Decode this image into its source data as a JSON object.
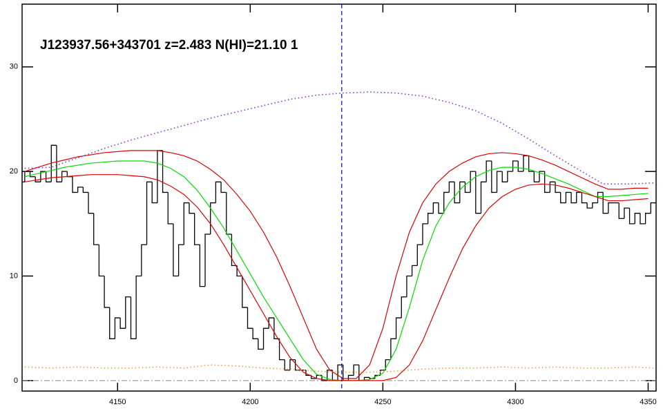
{
  "chart_data": {
    "type": "line",
    "title": "J123937.56+343701 z=2.483 N(HI)=21.10 1",
    "xlim": [
      4114,
      4353
    ],
    "ylim": [
      -1,
      36
    ],
    "xticks": [
      4150,
      4200,
      4250,
      4300,
      4350
    ],
    "yticks": [
      0,
      10,
      20,
      30
    ],
    "grid": false,
    "series": [
      {
        "style": "step",
        "color": "#000000",
        "x": [
          4114,
          4116,
          4118,
          4120,
          4122,
          4124,
          4126,
          4128,
          4130,
          4132,
          4134,
          4136,
          4138,
          4140,
          4142,
          4144,
          4146,
          4148,
          4150,
          4152,
          4154,
          4156,
          4158,
          4160,
          4162,
          4164,
          4166,
          4168,
          4170,
          4172,
          4174,
          4176,
          4178,
          4180,
          4182,
          4184,
          4186,
          4188,
          4190,
          4192,
          4194,
          4196,
          4198,
          4200,
          4202,
          4204,
          4206,
          4208,
          4210,
          4212,
          4214,
          4216,
          4218,
          4220,
          4222,
          4224,
          4226,
          4228,
          4230,
          4232,
          4234,
          4236,
          4238,
          4240,
          4242,
          4244,
          4246,
          4248,
          4250,
          4252,
          4254,
          4256,
          4258,
          4260,
          4262,
          4264,
          4266,
          4268,
          4270,
          4272,
          4274,
          4276,
          4278,
          4280,
          4282,
          4284,
          4286,
          4288,
          4290,
          4292,
          4294,
          4296,
          4298,
          4300,
          4302,
          4304,
          4306,
          4308,
          4310,
          4312,
          4314,
          4316,
          4318,
          4320,
          4322,
          4324,
          4326,
          4328,
          4330,
          4332,
          4334,
          4336,
          4338,
          4340,
          4342,
          4344,
          4346,
          4348,
          4350,
          4352
        ],
        "values": [
          19,
          20,
          19.5,
          19,
          20,
          19,
          22.5,
          19,
          20,
          19.5,
          18,
          18.5,
          18,
          16,
          13,
          10,
          7,
          4,
          6,
          5,
          8,
          4,
          10,
          13,
          19,
          17,
          22,
          18,
          15,
          10,
          13,
          17,
          16,
          13,
          9,
          14,
          17,
          19,
          18,
          14,
          11,
          10,
          7,
          5,
          4,
          3,
          5,
          6,
          4,
          2,
          1,
          2,
          1,
          1,
          0.5,
          0.2,
          0.5,
          0,
          1,
          0,
          1.5,
          0,
          0.5,
          1.5,
          0,
          0.3,
          0.2,
          0.5,
          1,
          2,
          4,
          6,
          8,
          10,
          11,
          13,
          15,
          16,
          17,
          16,
          18,
          19,
          17,
          19,
          18,
          20,
          16,
          19,
          21,
          18,
          20,
          19,
          20,
          21,
          20,
          21.5,
          20,
          19,
          20,
          18,
          19,
          18,
          17,
          18,
          17,
          18,
          17,
          16.5,
          17,
          18,
          16,
          17,
          17,
          15.5,
          16.5,
          15,
          16,
          15,
          16,
          17
        ]
      },
      {
        "style": "line",
        "color": "#00dd00",
        "x": [
          4115,
          4120,
          4125,
          4130,
          4135,
          4140,
          4145,
          4150,
          4155,
          4160,
          4165,
          4170,
          4175,
          4180,
          4185,
          4190,
          4195,
          4200,
          4205,
          4210,
          4215,
          4220,
          4225,
          4230,
          4235,
          4240,
          4245,
          4250,
          4255,
          4260,
          4265,
          4270,
          4275,
          4280,
          4285,
          4290,
          4295,
          4300,
          4305,
          4310,
          4315,
          4320,
          4325,
          4330,
          4335,
          4340,
          4345,
          4350
        ],
        "values": [
          19.5,
          19.8,
          20.1,
          20.4,
          20.6,
          20.8,
          20.9,
          21.0,
          21.0,
          21.0,
          20.8,
          20.3,
          19.5,
          18.2,
          16.5,
          14.6,
          12.4,
          10.2,
          8.0,
          6.0,
          4.0,
          2.0,
          0.6,
          0.1,
          0,
          0,
          0.1,
          0.7,
          3.0,
          7.0,
          11.5,
          14.8,
          17.0,
          18.5,
          19.5,
          20.1,
          20.4,
          20.4,
          20.2,
          19.8,
          19.3,
          18.8,
          18.2,
          17.6,
          17.6,
          17.7,
          17.8,
          17.9
        ]
      },
      {
        "style": "line",
        "color": "#dd0000",
        "x": [
          4115,
          4120,
          4125,
          4130,
          4135,
          4140,
          4145,
          4150,
          4155,
          4160,
          4165,
          4170,
          4175,
          4180,
          4185,
          4190,
          4195,
          4200,
          4205,
          4210,
          4215,
          4220,
          4225,
          4230,
          4235,
          4240,
          4245,
          4250,
          4255,
          4260,
          4265,
          4270,
          4275,
          4280,
          4285,
          4290,
          4295,
          4300,
          4305,
          4310,
          4315,
          4320,
          4325,
          4330,
          4335,
          4340,
          4345,
          4350
        ],
        "values": [
          20.0,
          20.4,
          20.8,
          21.1,
          21.4,
          21.6,
          21.8,
          21.9,
          22.0,
          22.0,
          22.0,
          21.8,
          21.5,
          21.0,
          20.2,
          19.2,
          17.8,
          16.2,
          14.2,
          11.8,
          9.0,
          6.0,
          3.0,
          1.0,
          0.2,
          0.2,
          1.5,
          5.0,
          10.0,
          14.2,
          17.0,
          18.8,
          20.0,
          20.8,
          21.4,
          21.7,
          21.8,
          21.7,
          21.5,
          21.1,
          20.6,
          20.0,
          19.4,
          18.8,
          18.3,
          18.3,
          18.4,
          18.4
        ]
      },
      {
        "style": "line",
        "color": "#dd0000",
        "x": [
          4115,
          4120,
          4125,
          4130,
          4135,
          4140,
          4145,
          4150,
          4155,
          4160,
          4165,
          4170,
          4175,
          4180,
          4185,
          4190,
          4195,
          4200,
          4205,
          4210,
          4215,
          4220,
          4225,
          4230,
          4235,
          4240,
          4245,
          4250,
          4255,
          4260,
          4265,
          4270,
          4275,
          4280,
          4285,
          4290,
          4295,
          4300,
          4305,
          4310,
          4315,
          4320,
          4325,
          4330,
          4335,
          4340,
          4345,
          4350
        ],
        "values": [
          19.0,
          19.2,
          19.4,
          19.5,
          19.6,
          19.7,
          19.7,
          19.7,
          19.6,
          19.5,
          19.2,
          18.6,
          17.8,
          16.6,
          15.0,
          13.0,
          10.8,
          8.6,
          6.4,
          4.2,
          2.2,
          0.8,
          0.2,
          0,
          0,
          0,
          0,
          0,
          0.3,
          1.5,
          3.8,
          6.8,
          9.8,
          12.6,
          14.8,
          16.5,
          17.6,
          18.3,
          18.7,
          18.8,
          18.7,
          18.4,
          18.0,
          17.6,
          17.2,
          17.2,
          17.3,
          17.4
        ]
      },
      {
        "style": "dotted",
        "color": "#8a2be2",
        "x": [
          4115,
          4125,
          4135,
          4145,
          4155,
          4165,
          4175,
          4185,
          4195,
          4205,
          4215,
          4225,
          4235,
          4245,
          4255,
          4265,
          4275,
          4285,
          4295,
          4305,
          4315,
          4325,
          4333,
          4343,
          4352
        ],
        "values": [
          20.3,
          20.4,
          21.3,
          22.2,
          23.0,
          23.7,
          24.4,
          25.1,
          25.7,
          26.3,
          26.9,
          27.3,
          27.5,
          27.6,
          27.5,
          27.2,
          26.6,
          25.8,
          24.6,
          23.1,
          21.5,
          20.0,
          18.8,
          18.8,
          18.9
        ]
      },
      {
        "style": "dotted",
        "color": "#ff9933",
        "x": [
          4115,
          4125,
          4135,
          4145,
          4155,
          4165,
          4175,
          4185,
          4195,
          4205,
          4215,
          4225,
          4235,
          4245,
          4255,
          4265,
          4275,
          4285,
          4295,
          4305,
          4315,
          4325,
          4335,
          4345,
          4352
        ],
        "values": [
          1.3,
          1.2,
          1.3,
          1.2,
          1.2,
          1.3,
          1.2,
          1.5,
          1.4,
          1.2,
          1.1,
          0.9,
          0.8,
          0.8,
          0.9,
          1.1,
          1.2,
          1.2,
          1.3,
          1.2,
          1.3,
          1.2,
          1.2,
          1.3,
          1.2
        ]
      }
    ],
    "vlines": [
      {
        "value": 4234.5,
        "color": "#0000cc"
      }
    ],
    "hlines": [
      {
        "value": 0,
        "color": "#888888"
      }
    ]
  }
}
